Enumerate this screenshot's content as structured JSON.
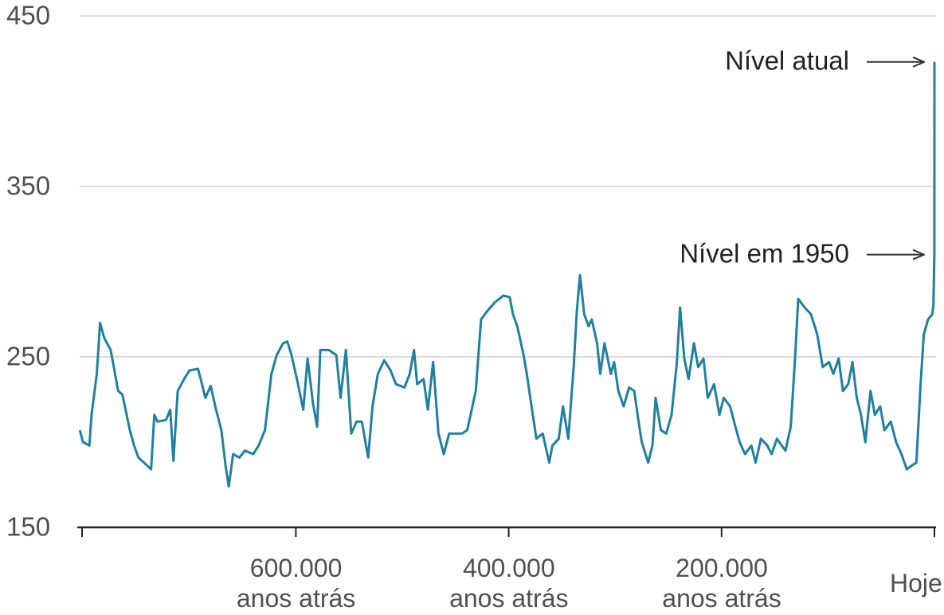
{
  "chart_data": {
    "type": "line",
    "color": "#1f80a0",
    "x": [
      803000,
      800000,
      794000,
      792000,
      787000,
      784000,
      780000,
      774000,
      771000,
      767000,
      763000,
      759000,
      756000,
      752000,
      748000,
      741000,
      736000,
      733000,
      730000,
      722000,
      718000,
      715000,
      711000,
      705000,
      700000,
      692000,
      689000,
      685000,
      680000,
      675000,
      670000,
      666000,
      663000,
      659000,
      653000,
      648000,
      640000,
      635000,
      629000,
      623000,
      618000,
      612000,
      608000,
      604000,
      599000,
      593000,
      589000,
      584000,
      580000,
      577000,
      569000,
      562000,
      558000,
      553000,
      548000,
      543000,
      538000,
      532000,
      528000,
      523000,
      517000,
      511000,
      506000,
      498000,
      493000,
      489000,
      486000,
      480000,
      476000,
      471000,
      466000,
      461000,
      456000,
      450000,
      444000,
      439000,
      431000,
      426000,
      420000,
      413000,
      405000,
      399000,
      396000,
      392000,
      386000,
      383000,
      379000,
      374000,
      368000,
      362000,
      359000,
      353000,
      349000,
      344000,
      339000,
      336000,
      333000,
      329000,
      325000,
      322000,
      317000,
      314000,
      310000,
      304000,
      301000,
      297000,
      292000,
      287000,
      282000,
      278000,
      275000,
      269000,
      265000,
      262000,
      257000,
      252000,
      247000,
      242000,
      239000,
      235000,
      231000,
      226000,
      222000,
      217000,
      213000,
      207000,
      202000,
      198000,
      192000,
      187000,
      183000,
      178000,
      172000,
      168000,
      163000,
      157000,
      153000,
      148000,
      140000,
      135000,
      131000,
      128000,
      122000,
      116000,
      110000,
      105000,
      99000,
      95000,
      90000,
      86000,
      81000,
      77000,
      73000,
      69000,
      65000,
      60000,
      56000,
      51000,
      47000,
      41000,
      36000,
      31000,
      26000,
      22000,
      17000,
      13000,
      10000,
      6000,
      2000,
      1000,
      70,
      0
    ],
    "values": [
      207,
      200,
      198,
      216,
      240,
      270,
      261,
      254,
      244,
      230,
      228,
      216,
      207,
      198,
      191,
      187,
      184,
      216,
      212,
      213,
      219,
      189,
      230,
      237,
      242,
      243,
      236,
      226,
      233,
      219,
      207,
      186,
      174,
      193,
      191,
      195,
      193,
      198,
      207,
      240,
      251,
      258,
      259,
      251,
      237,
      219,
      249,
      223,
      209,
      254,
      254,
      251,
      226,
      254,
      205,
      212,
      212,
      191,
      221,
      240,
      248,
      242,
      234,
      232,
      240,
      254,
      234,
      237,
      219,
      247,
      205,
      193,
      205,
      205,
      205,
      207,
      230,
      272,
      277,
      282,
      286,
      285,
      275,
      268,
      251,
      240,
      223,
      202,
      205,
      188,
      198,
      202,
      221,
      202,
      244,
      277,
      298,
      275,
      268,
      272,
      258,
      240,
      258,
      240,
      247,
      230,
      221,
      232,
      230,
      212,
      200,
      188,
      198,
      226,
      207,
      205,
      216,
      247,
      279,
      249,
      237,
      258,
      244,
      249,
      226,
      234,
      216,
      226,
      221,
      209,
      200,
      193,
      198,
      188,
      202,
      198,
      193,
      202,
      195,
      209,
      249,
      284,
      279,
      275,
      263,
      244,
      247,
      240,
      249,
      230,
      234,
      247,
      226,
      216,
      200,
      230,
      216,
      221,
      207,
      212,
      200,
      193,
      184,
      186,
      188,
      234,
      263,
      272,
      275,
      280,
      310,
      423
    ],
    "xlim": [
      805000,
      0
    ],
    "xticks": [
      {
        "value": 600000,
        "label": "600.000\nanos atrás"
      },
      {
        "value": 400000,
        "label": "400.000\nanos atrás"
      },
      {
        "value": 200000,
        "label": "200.000\nanos atrás"
      },
      {
        "value": 0,
        "label": "Hoje"
      }
    ],
    "ylim": [
      150,
      450
    ],
    "yticks": [
      150,
      250,
      350,
      450
    ],
    "grid": true,
    "annotations": [
      {
        "text": "Nível atual",
        "value": 423
      },
      {
        "text": "Nível em 1950",
        "value": 310
      }
    ]
  }
}
